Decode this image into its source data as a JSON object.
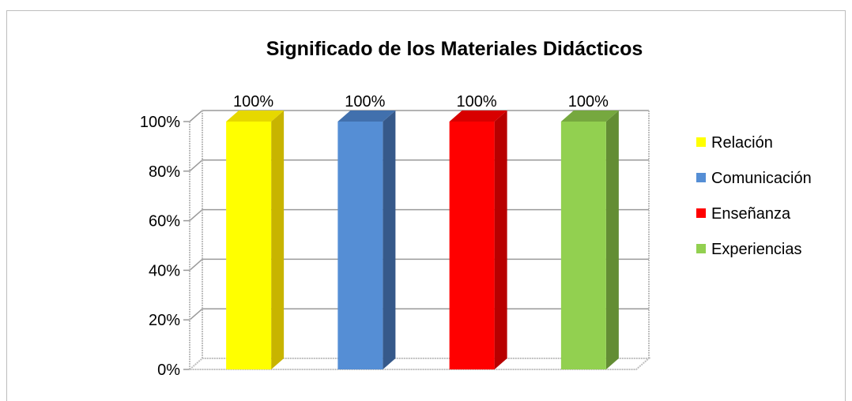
{
  "chart_data": {
    "type": "bar",
    "title": "Significado de los Materiales Didácticos",
    "categories": [
      "Relación",
      "Comunicación",
      "Enseñanza",
      "Experiencias"
    ],
    "values": [
      100,
      100,
      100,
      100
    ],
    "data_labels": [
      "100%",
      "100%",
      "100%",
      "100%"
    ],
    "y_ticks": [
      "0%",
      "20%",
      "40%",
      "60%",
      "80%",
      "100%"
    ],
    "ylim": [
      0,
      100
    ],
    "xlabel": "",
    "ylabel": "",
    "grid": true,
    "legend_position": "right",
    "three_d": true,
    "colors": {
      "front": [
        "#ffff00",
        "#558ed5",
        "#ff0000",
        "#92d050"
      ],
      "side": [
        "#c8b400",
        "#36598a",
        "#b80000",
        "#638d34"
      ],
      "top": [
        "#e6d800",
        "#4170ad",
        "#d80000",
        "#76a83f"
      ]
    }
  }
}
